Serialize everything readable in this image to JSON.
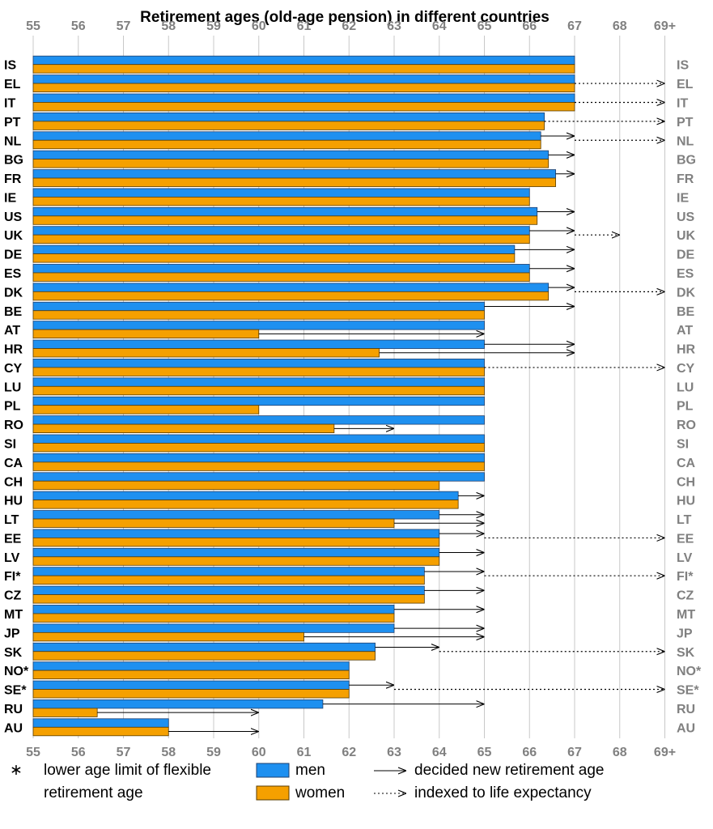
{
  "chart_data": {
    "type": "bar",
    "orientation": "horizontal",
    "title": "Retirement ages (old-age pension) in different countries",
    "xlim": [
      55,
      69
    ],
    "x_ticks": [
      "55",
      "56",
      "57",
      "58",
      "59",
      "60",
      "61",
      "62",
      "63",
      "64",
      "65",
      "66",
      "67",
      "68",
      "69+"
    ],
    "grid": true,
    "categories": [
      "IS",
      "EL",
      "IT",
      "PT",
      "NL",
      "BG",
      "FR",
      "IE",
      "US",
      "UK",
      "DE",
      "ES",
      "DK",
      "BE",
      "AT",
      "HR",
      "CY",
      "LU",
      "PL",
      "RO",
      "SI",
      "CA",
      "CH",
      "HU",
      "LT",
      "EE",
      "LV",
      "FI*",
      "CZ",
      "MT",
      "JP",
      "SK",
      "NO*",
      "SE*",
      "RU",
      "AU"
    ],
    "series": [
      {
        "name": "men",
        "color": "#1E90F0",
        "values": [
          67,
          67,
          67,
          66.33,
          66.25,
          66.42,
          66.58,
          66,
          66.17,
          66,
          65.67,
          66,
          66.42,
          65,
          65,
          65,
          65,
          65,
          65,
          65,
          65,
          65,
          65,
          64.42,
          64,
          64,
          64,
          63.67,
          63.67,
          63,
          63,
          62.58,
          62,
          62,
          61.42,
          58
        ]
      },
      {
        "name": "women",
        "color": "#F5A000",
        "values": [
          67,
          67,
          67,
          66.33,
          66.25,
          66.42,
          66.58,
          66,
          66.17,
          66,
          65.67,
          66,
          66.42,
          65,
          60,
          62.67,
          65,
          65,
          60,
          61.67,
          65,
          65,
          64,
          64.42,
          63,
          64,
          64,
          63.67,
          63.67,
          63,
          61,
          62.58,
          62,
          62,
          56.42,
          58
        ]
      }
    ],
    "decided_new_age_men": [
      null,
      null,
      null,
      null,
      67,
      67,
      67,
      null,
      67,
      67,
      67,
      67,
      67,
      67,
      null,
      67,
      null,
      null,
      null,
      null,
      null,
      null,
      null,
      65,
      65,
      65,
      65,
      65,
      65,
      65,
      65,
      64,
      null,
      63,
      65,
      null
    ],
    "decided_new_age_women": [
      null,
      null,
      null,
      null,
      null,
      null,
      null,
      null,
      null,
      null,
      null,
      null,
      null,
      null,
      65,
      67,
      null,
      null,
      null,
      63,
      null,
      null,
      null,
      null,
      65,
      null,
      null,
      null,
      null,
      null,
      65,
      null,
      null,
      null,
      60,
      60
    ],
    "life_expectancy_indexed": [
      null,
      "69+",
      "69+",
      "69+",
      "69+",
      null,
      null,
      null,
      null,
      "68",
      null,
      null,
      "69+",
      null,
      null,
      null,
      "69+",
      null,
      null,
      null,
      null,
      null,
      null,
      null,
      null,
      "69+",
      null,
      "69+",
      null,
      null,
      null,
      "69+",
      null,
      "69+",
      null,
      null
    ],
    "legend": {
      "footnote_mark": "∗",
      "footnote_line1": "lower age limit of flexible",
      "footnote_line2": "retirement age",
      "men": "men",
      "women": "women",
      "decided": "decided new retirement age",
      "indexed": "indexed to life expectancy"
    }
  }
}
